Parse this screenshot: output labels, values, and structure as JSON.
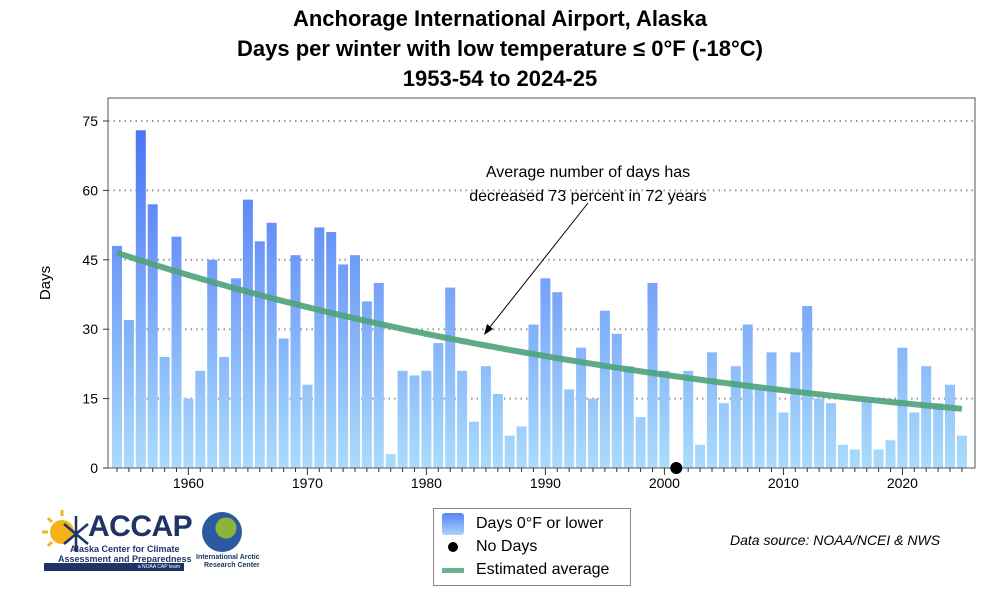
{
  "chart_data": {
    "type": "bar",
    "title": [
      "Anchorage International Airport, Alaska",
      "Days per winter with low temperature ≤ 0°F (-18°C)",
      "1953-54 to 2024-25"
    ],
    "xlabel": "",
    "ylabel": "Days",
    "ylim": [
      0,
      75
    ],
    "yticks": [
      0,
      15,
      30,
      45,
      60,
      75
    ],
    "xticks": [
      1960,
      1970,
      1980,
      1990,
      2000,
      2010,
      2020
    ],
    "x": [
      1954,
      1955,
      1956,
      1957,
      1958,
      1959,
      1960,
      1961,
      1962,
      1963,
      1964,
      1965,
      1966,
      1967,
      1968,
      1969,
      1970,
      1971,
      1972,
      1973,
      1974,
      1975,
      1976,
      1977,
      1978,
      1979,
      1980,
      1981,
      1982,
      1983,
      1984,
      1985,
      1986,
      1987,
      1988,
      1989,
      1990,
      1991,
      1992,
      1993,
      1994,
      1995,
      1996,
      1997,
      1998,
      1999,
      2000,
      2001,
      2002,
      2003,
      2004,
      2005,
      2006,
      2007,
      2008,
      2009,
      2010,
      2011,
      2012,
      2013,
      2014,
      2015,
      2016,
      2017,
      2018,
      2019,
      2020,
      2021,
      2022,
      2023,
      2024,
      2025
    ],
    "values": [
      48,
      32,
      73,
      57,
      24,
      50,
      15,
      21,
      45,
      24,
      41,
      58,
      49,
      53,
      28,
      46,
      18,
      52,
      51,
      44,
      46,
      36,
      40,
      3,
      21,
      20,
      21,
      27,
      39,
      21,
      10,
      22,
      16,
      7,
      9,
      31,
      41,
      38,
      17,
      26,
      15,
      34,
      29,
      22,
      11,
      40,
      21,
      0,
      21,
      5,
      25,
      14,
      22,
      31,
      17,
      25,
      12,
      25,
      35,
      15,
      14,
      5,
      4,
      15,
      4,
      6,
      26,
      12,
      22,
      14,
      18,
      7
    ],
    "trend": {
      "name": "Estimated average",
      "start_year": 1954,
      "start_value": 46.5,
      "end_year": 2025,
      "end_value": 12.8,
      "shape": "exponential"
    },
    "no_days_years": [
      2001
    ],
    "annotation": [
      "Average number of days has",
      "decreased 73 percent in 72 years"
    ],
    "legend": [
      "Days 0°F or lower",
      "No Days",
      "Estimated average"
    ],
    "legend_position": "bottom-center",
    "grid": "horizontal-dotted",
    "colors": {
      "bar_top": "#4a6ff5",
      "bar_bottom": "#a9dcfc",
      "trend": "#4fa27a"
    }
  },
  "source": "Data source: NOAA/NCEI & NWS",
  "logos": {
    "accap": {
      "name": "ACCAP",
      "line1": "Alaska Center for Climate",
      "line2": "Assessment and Preparedness",
      "tag": "a NOAA CAP team"
    },
    "iarc": {
      "line1": "International Arctic",
      "line2": "Research Center"
    }
  }
}
